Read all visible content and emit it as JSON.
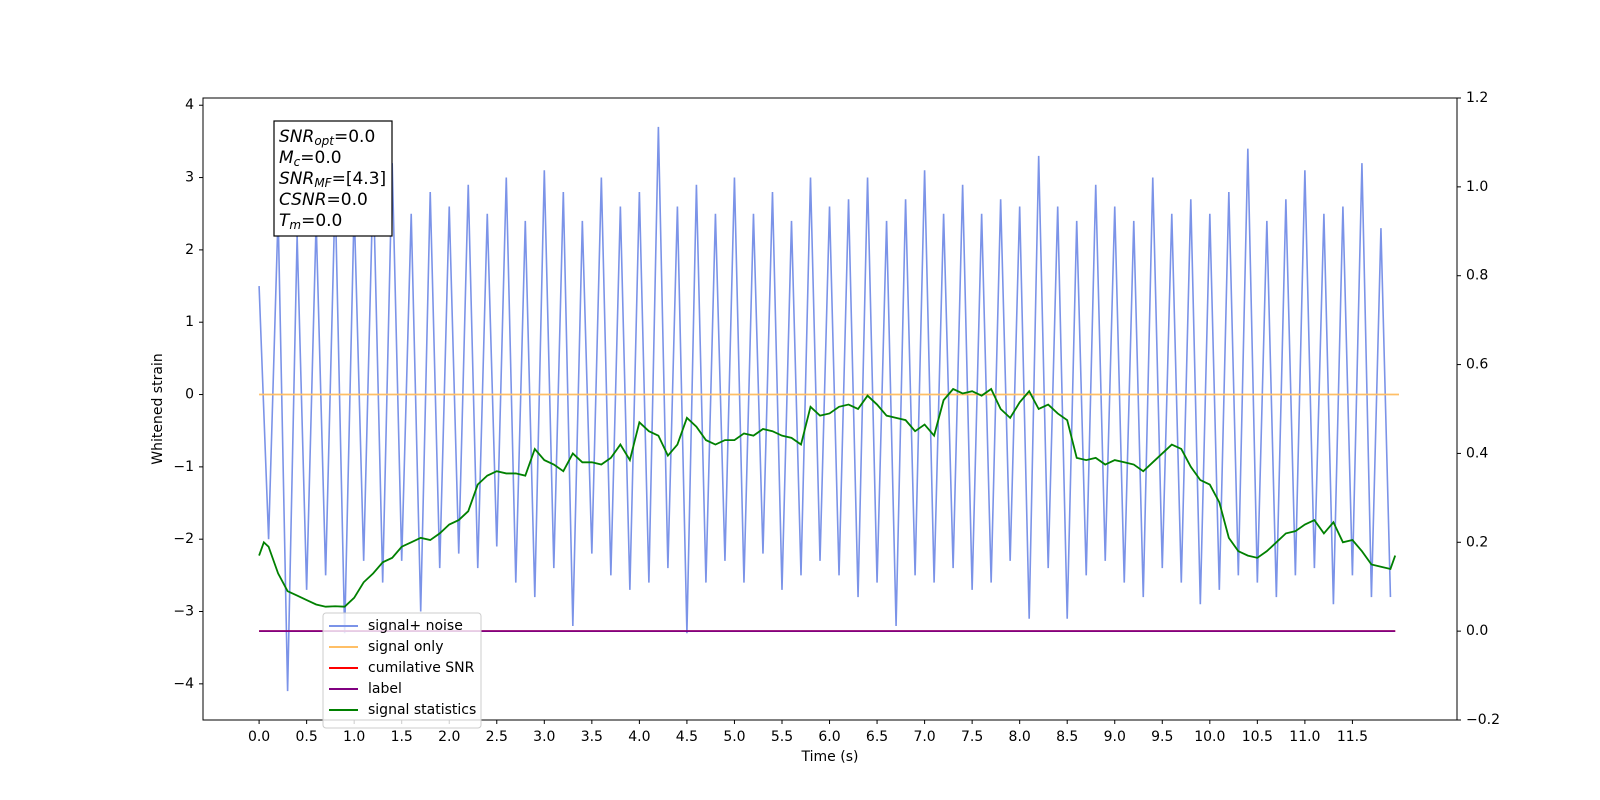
{
  "chart_data": {
    "type": "line",
    "xlabel": "Time (s)",
    "ylabel": "Whitened strain",
    "xlim": [
      -0.59,
      12.6
    ],
    "ylim": [
      -4.5,
      4.1
    ],
    "y2lim": [
      -0.2,
      1.2
    ],
    "xticks": [
      {
        "value": 0,
        "label": "0.0"
      },
      0.5,
      {
        "value": 1,
        "label": "1.0"
      },
      1.5,
      {
        "value": 2,
        "label": "2.0"
      },
      2.5,
      {
        "value": 3,
        "label": "3.0"
      },
      3.5,
      {
        "value": 4,
        "label": "4.0"
      },
      4.5,
      {
        "value": 5,
        "label": "5.0"
      },
      5.5,
      {
        "value": 6,
        "label": "6.0"
      },
      6.5,
      {
        "value": 7,
        "label": "7.0"
      },
      7.5,
      {
        "value": 8,
        "label": "8.0"
      },
      8.5,
      {
        "value": 9,
        "label": "9.0"
      },
      9.5,
      {
        "value": 10,
        "label": "10.0"
      },
      10.5,
      {
        "value": 11,
        "label": "11.0"
      },
      11.5
    ],
    "yticks": [
      {
        "value": -4,
        "label": "−4"
      },
      {
        "value": -3,
        "label": "−3"
      },
      {
        "value": -2,
        "label": "−2"
      },
      {
        "value": -1,
        "label": "−1"
      },
      0,
      1,
      2,
      3,
      4
    ],
    "y2ticks": [
      {
        "value": -0.2,
        "label": "−0.2"
      },
      {
        "value": 0,
        "label": "0.0"
      },
      0.2,
      0.4,
      0.6,
      0.8,
      {
        "value": 1,
        "label": "1.0"
      },
      1.2
    ],
    "legend": "lower left",
    "grid": false,
    "x": [
      0.0,
      0.1,
      0.2,
      0.3,
      0.4,
      0.5,
      0.6,
      0.7,
      0.8,
      0.9,
      1.0,
      1.1,
      1.2,
      1.3,
      1.4,
      1.5,
      1.6,
      1.7,
      1.8,
      1.9,
      2.0,
      2.1,
      2.2,
      2.3,
      2.4,
      2.5,
      2.6,
      2.7,
      2.8,
      2.9,
      3.0,
      3.1,
      3.2,
      3.3,
      3.4,
      3.5,
      3.6,
      3.7,
      3.8,
      3.9,
      4.0,
      4.1,
      4.2,
      4.3,
      4.4,
      4.5,
      4.6,
      4.7,
      4.8,
      4.9,
      5.0,
      5.1,
      5.2,
      5.3,
      5.4,
      5.5,
      5.6,
      5.7,
      5.8,
      5.9,
      6.0,
      6.1,
      6.2,
      6.3,
      6.4,
      6.5,
      6.6,
      6.7,
      6.8,
      6.9,
      7.0,
      7.1,
      7.2,
      7.3,
      7.4,
      7.5,
      7.6,
      7.7,
      7.8,
      7.9,
      8.0,
      8.1,
      8.2,
      8.3,
      8.4,
      8.5,
      8.6,
      8.7,
      8.8,
      8.9,
      9.0,
      9.1,
      9.2,
      9.3,
      9.4,
      9.5,
      9.6,
      9.7,
      9.8,
      9.9,
      10.0,
      10.1,
      10.2,
      10.3,
      10.4,
      10.5,
      10.6,
      10.7,
      10.8,
      10.9,
      11.0,
      11.1,
      11.2,
      11.3,
      11.4,
      11.5,
      11.6,
      11.7,
      11.8,
      11.9
    ],
    "series": [
      {
        "name": "signal+ noise",
        "color": "#7b93e8",
        "values": [
          1.5,
          -2.0,
          2.5,
          -4.1,
          2.2,
          -2.7,
          2.4,
          -2.5,
          2.8,
          -3.3,
          2.6,
          -2.3,
          3.0,
          -2.6,
          3.2,
          -2.3,
          2.5,
          -3.0,
          2.8,
          -2.4,
          2.6,
          -2.2,
          2.9,
          -2.4,
          2.5,
          -2.1,
          3.0,
          -2.6,
          2.4,
          -2.8,
          3.1,
          -2.4,
          2.8,
          -3.2,
          2.4,
          -2.2,
          3.0,
          -2.5,
          2.6,
          -2.7,
          2.8,
          -2.6,
          3.7,
          -2.4,
          2.6,
          -3.3,
          2.9,
          -2.6,
          2.5,
          -2.3,
          3.0,
          -2.6,
          2.5,
          -2.2,
          2.8,
          -2.7,
          2.4,
          -2.5,
          3.0,
          -2.3,
          2.6,
          -2.5,
          2.7,
          -2.8,
          3.0,
          -2.6,
          2.4,
          -3.2,
          2.7,
          -2.5,
          3.1,
          -2.6,
          2.5,
          -2.4,
          2.9,
          -2.7,
          2.5,
          -2.6,
          2.7,
          -2.3,
          2.6,
          -3.1,
          3.3,
          -2.4,
          2.6,
          -3.1,
          2.4,
          -2.5,
          2.9,
          -2.3,
          2.6,
          -2.6,
          2.4,
          -2.8,
          3.0,
          -2.4,
          2.5,
          -2.6,
          2.7,
          -2.9,
          2.5,
          -2.7,
          2.8,
          -2.5,
          3.4,
          -2.6,
          2.4,
          -2.8,
          2.7,
          -2.5,
          3.1,
          -2.4,
          2.5,
          -2.9,
          2.6,
          -2.5,
          3.2,
          -2.8,
          2.3,
          -2.8
        ]
      },
      {
        "name": "signal only",
        "color": "#ffbf66",
        "x": [
          0.0,
          11.99
        ],
        "values": [
          0,
          0
        ]
      },
      {
        "name": "cumilative SNR",
        "color": "#ff0000",
        "axis": "y2",
        "x": [
          0.0,
          11.95
        ],
        "values": [
          0,
          0
        ]
      },
      {
        "name": "label",
        "color": "#800080",
        "axis": "y2",
        "x": [
          0.0,
          11.95
        ],
        "values": [
          0,
          0
        ]
      },
      {
        "name": "signal statistics",
        "color": "#008000",
        "axis": "y2",
        "x": [
          0.0,
          0.05,
          0.1,
          0.2,
          0.3,
          0.4,
          0.5,
          0.6,
          0.7,
          0.8,
          0.9,
          1.0,
          1.1,
          1.2,
          1.3,
          1.4,
          1.5,
          1.6,
          1.7,
          1.8,
          1.9,
          2.0,
          2.1,
          2.2,
          2.3,
          2.4,
          2.5,
          2.6,
          2.7,
          2.8,
          2.9,
          3.0,
          3.1,
          3.2,
          3.3,
          3.4,
          3.5,
          3.6,
          3.7,
          3.8,
          3.9,
          4.0,
          4.1,
          4.2,
          4.3,
          4.4,
          4.5,
          4.6,
          4.7,
          4.8,
          4.9,
          5.0,
          5.1,
          5.2,
          5.3,
          5.4,
          5.5,
          5.6,
          5.7,
          5.8,
          5.9,
          6.0,
          6.1,
          6.2,
          6.3,
          6.4,
          6.5,
          6.6,
          6.7,
          6.8,
          6.9,
          7.0,
          7.1,
          7.2,
          7.3,
          7.4,
          7.5,
          7.6,
          7.7,
          7.8,
          7.9,
          8.0,
          8.1,
          8.2,
          8.3,
          8.4,
          8.5,
          8.6,
          8.7,
          8.8,
          8.9,
          9.0,
          9.1,
          9.2,
          9.3,
          9.4,
          9.5,
          9.6,
          9.7,
          9.8,
          9.9,
          10.0,
          10.1,
          10.2,
          10.3,
          10.4,
          10.5,
          10.6,
          10.7,
          10.8,
          10.9,
          11.0,
          11.1,
          11.2,
          11.3,
          11.4,
          11.5,
          11.6,
          11.7,
          11.8,
          11.9,
          11.95
        ],
        "values": [
          0.17,
          0.2,
          0.19,
          0.13,
          0.09,
          0.08,
          0.07,
          0.06,
          0.055,
          0.056,
          0.055,
          0.075,
          0.11,
          0.13,
          0.155,
          0.165,
          0.19,
          0.2,
          0.21,
          0.205,
          0.22,
          0.24,
          0.25,
          0.27,
          0.33,
          0.35,
          0.36,
          0.355,
          0.355,
          0.35,
          0.41,
          0.385,
          0.375,
          0.36,
          0.4,
          0.38,
          0.38,
          0.375,
          0.39,
          0.42,
          0.385,
          0.47,
          0.45,
          0.44,
          0.395,
          0.42,
          0.48,
          0.46,
          0.43,
          0.42,
          0.43,
          0.43,
          0.445,
          0.44,
          0.455,
          0.45,
          0.44,
          0.435,
          0.42,
          0.505,
          0.485,
          0.49,
          0.505,
          0.51,
          0.5,
          0.53,
          0.51,
          0.485,
          0.48,
          0.475,
          0.45,
          0.465,
          0.44,
          0.52,
          0.545,
          0.535,
          0.54,
          0.53,
          0.545,
          0.5,
          0.48,
          0.515,
          0.54,
          0.5,
          0.51,
          0.49,
          0.475,
          0.39,
          0.385,
          0.39,
          0.375,
          0.385,
          0.38,
          0.375,
          0.36,
          0.38,
          0.4,
          0.42,
          0.41,
          0.37,
          0.34,
          0.33,
          0.29,
          0.21,
          0.18,
          0.17,
          0.165,
          0.18,
          0.2,
          0.22,
          0.225,
          0.24,
          0.25,
          0.22,
          0.245,
          0.2,
          0.205,
          0.18,
          0.15,
          0.145,
          0.14,
          0.17
        ]
      }
    ],
    "annotations": [
      {
        "text": "SNR",
        "sub": "opt",
        "value": "=0.0"
      },
      {
        "text": "M",
        "sub": "c",
        "value": "=0.0"
      },
      {
        "text": "SNR",
        "sub": "MF",
        "value": "=[4.3]"
      },
      {
        "text": "CSNR",
        "value": "=0.0"
      },
      {
        "text": "T",
        "sub": "m",
        "value": "=0.0"
      }
    ]
  }
}
